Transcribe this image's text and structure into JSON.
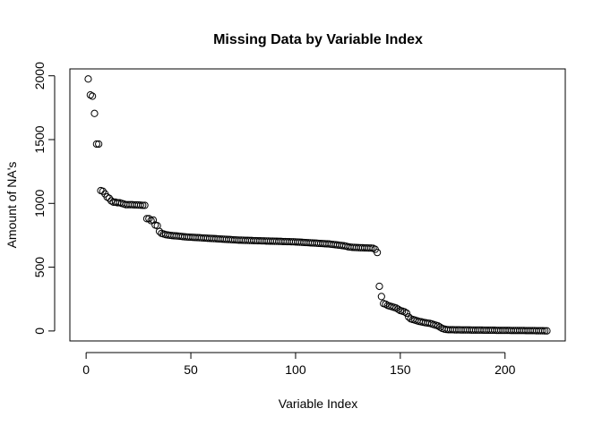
{
  "chart_data": {
    "type": "scatter",
    "title": "Missing Data by Variable Index",
    "x_label": "Variable Index",
    "y_label": "Amount of NA's",
    "x": [
      1,
      2,
      3,
      4,
      5,
      6,
      7,
      8,
      9,
      10,
      11,
      12,
      13,
      14,
      15,
      16,
      17,
      18,
      19,
      20,
      21,
      22,
      23,
      24,
      25,
      26,
      27,
      28,
      29,
      30,
      31,
      32,
      33,
      34,
      35,
      36,
      37,
      38,
      39,
      40,
      41,
      42,
      43,
      44,
      45,
      46,
      47,
      48,
      49,
      50,
      51,
      52,
      53,
      54,
      55,
      56,
      57,
      58,
      59,
      60,
      61,
      62,
      63,
      64,
      65,
      66,
      67,
      68,
      69,
      70,
      71,
      72,
      73,
      74,
      75,
      76,
      77,
      78,
      79,
      80,
      81,
      82,
      83,
      84,
      85,
      86,
      87,
      88,
      89,
      90,
      91,
      92,
      93,
      94,
      95,
      96,
      97,
      98,
      99,
      100,
      101,
      102,
      103,
      104,
      105,
      106,
      107,
      108,
      109,
      110,
      111,
      112,
      113,
      114,
      115,
      116,
      117,
      118,
      119,
      120,
      121,
      122,
      123,
      124,
      125,
      126,
      127,
      128,
      129,
      130,
      131,
      132,
      133,
      134,
      135,
      136,
      137,
      138,
      139,
      140,
      141,
      142,
      143,
      144,
      145,
      146,
      147,
      148,
      149,
      150,
      151,
      152,
      153,
      154,
      155,
      156,
      157,
      158,
      159,
      160,
      161,
      162,
      163,
      164,
      165,
      166,
      167,
      168,
      169,
      170,
      171,
      172,
      173,
      174,
      175,
      176,
      177,
      178,
      179,
      180,
      181,
      182,
      183,
      184,
      185,
      186,
      187,
      188,
      189,
      190,
      191,
      192,
      193,
      194,
      195,
      196,
      197,
      198,
      199,
      200,
      201,
      202,
      203,
      204,
      205,
      206,
      207,
      208,
      209,
      210,
      211,
      212,
      213,
      214,
      215,
      216,
      217,
      218,
      219,
      220
    ],
    "values": [
      1975,
      1850,
      1840,
      1705,
      1465,
      1465,
      1100,
      1095,
      1075,
      1050,
      1040,
      1020,
      1010,
      1010,
      1005,
      1005,
      1000,
      995,
      990,
      990,
      990,
      990,
      988,
      988,
      987,
      986,
      985,
      985,
      880,
      880,
      865,
      870,
      830,
      825,
      780,
      765,
      760,
      755,
      752,
      750,
      748,
      746,
      745,
      744,
      742,
      740,
      738,
      737,
      736,
      735,
      734,
      733,
      732,
      731,
      730,
      729,
      728,
      727,
      726,
      725,
      724,
      723,
      722,
      721,
      720,
      719,
      718,
      717,
      716,
      715,
      714,
      713,
      712,
      712,
      711,
      710,
      710,
      709,
      709,
      708,
      708,
      707,
      707,
      706,
      706,
      705,
      705,
      704,
      704,
      703,
      703,
      702,
      702,
      701,
      701,
      700,
      700,
      699,
      699,
      698,
      697,
      696,
      695,
      694,
      693,
      692,
      691,
      690,
      689,
      688,
      687,
      686,
      685,
      684,
      683,
      682,
      680,
      678,
      676,
      674,
      672,
      670,
      668,
      665,
      660,
      658,
      656,
      655,
      654,
      653,
      652,
      652,
      651,
      651,
      650,
      650,
      648,
      640,
      615,
      350,
      270,
      215,
      210,
      200,
      195,
      190,
      185,
      180,
      170,
      160,
      155,
      150,
      140,
      110,
      95,
      90,
      85,
      80,
      75,
      72,
      68,
      65,
      62,
      60,
      55,
      50,
      45,
      40,
      30,
      20,
      15,
      12,
      10,
      10,
      10,
      9,
      9,
      9,
      8,
      8,
      8,
      8,
      8,
      7,
      7,
      7,
      7,
      7,
      7,
      6,
      6,
      6,
      6,
      6,
      6,
      5,
      5,
      5,
      5,
      5,
      5,
      5,
      4,
      4,
      4,
      4,
      4,
      4,
      4,
      3,
      3,
      3,
      3,
      3,
      2,
      2,
      2,
      2,
      1,
      1
    ],
    "color": "#000000",
    "xlim": [
      -7.76,
      228.76
    ],
    "ylim": [
      -78,
      2054
    ],
    "xticks": [
      0,
      50,
      100,
      150,
      200
    ],
    "yticks": [
      0,
      500,
      1000,
      1500,
      2000
    ]
  }
}
